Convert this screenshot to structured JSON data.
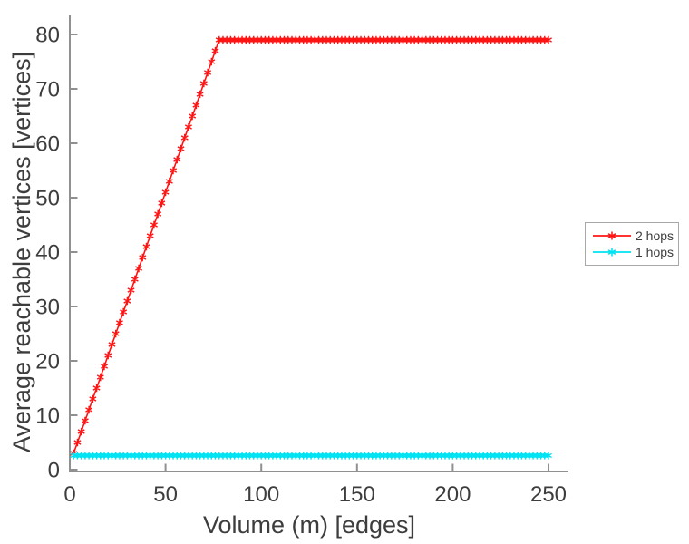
{
  "figure": {
    "background": "#ffffff",
    "text_color": "#3d3d3d",
    "axis_color": "#909090"
  },
  "chart_data": {
    "type": "line",
    "title": "",
    "xlabel": "Volume (m) [edges]",
    "ylabel": "Average reachable vertices [vertices]",
    "xlim": [
      0,
      260
    ],
    "ylim": [
      0,
      83
    ],
    "xticks": [
      0,
      50,
      100,
      150,
      200,
      250
    ],
    "yticks": [
      0,
      10,
      20,
      30,
      40,
      50,
      60,
      70,
      80
    ],
    "grid": false,
    "legend": {
      "position": "outside-right",
      "border_color": "#a8a8a8",
      "background": "#ffffff",
      "entries": [
        "2 hops",
        "1 hops"
      ]
    },
    "series": [
      {
        "name": "2 hops",
        "color": "#ff1414",
        "marker": "asterisk",
        "x_start": 2,
        "x_end": 250,
        "x_step": 2,
        "breakpoints": [
          [
            2,
            3
          ],
          [
            78,
            79
          ],
          [
            250,
            79
          ]
        ]
      },
      {
        "name": "1 hops",
        "color": "#00e3f2",
        "marker": "asterisk",
        "x_start": 2,
        "x_end": 250,
        "x_step": 2,
        "breakpoints": [
          [
            2,
            2.6
          ],
          [
            250,
            2.6
          ]
        ]
      }
    ]
  }
}
